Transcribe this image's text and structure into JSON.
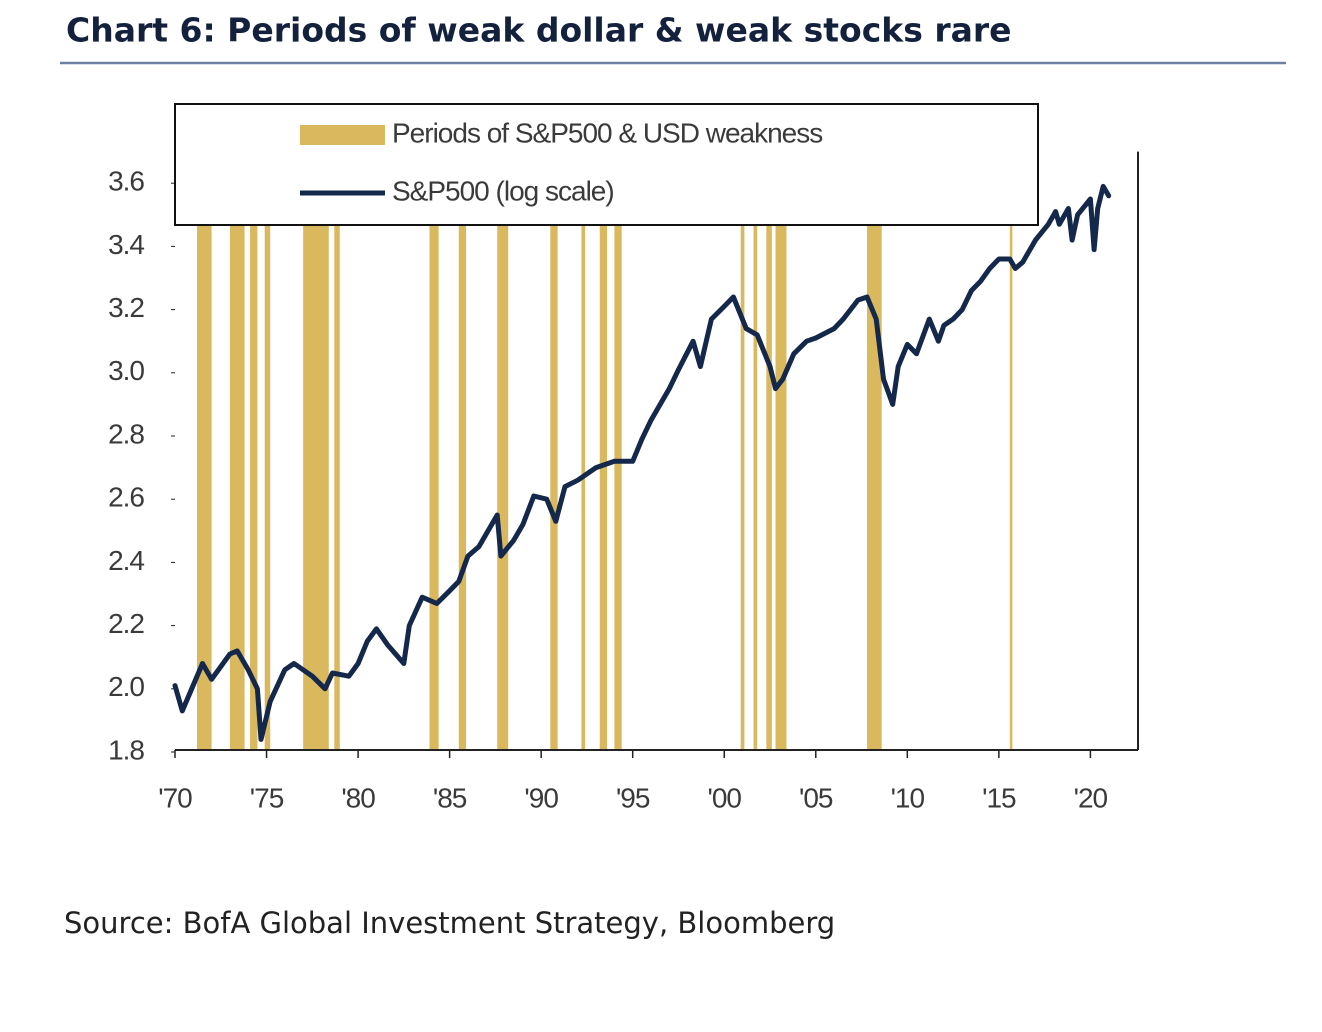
{
  "chart_data": {
    "type": "line",
    "title": "Chart 6: Periods of weak dollar & weak stocks rare",
    "source": "Source: BofA Global Investment Strategy, Bloomberg",
    "xlim": [
      1970,
      2022.6
    ],
    "ylim": [
      1.8,
      3.7
    ],
    "xticks": [
      {
        "value": 1970,
        "label": "'70"
      },
      {
        "value": 1975,
        "label": "'75"
      },
      {
        "value": 1980,
        "label": "'80"
      },
      {
        "value": 1985,
        "label": "'85"
      },
      {
        "value": 1990,
        "label": "'90"
      },
      {
        "value": 1995,
        "label": "'95"
      },
      {
        "value": 2000,
        "label": "'00"
      },
      {
        "value": 2005,
        "label": "'05"
      },
      {
        "value": 2010,
        "label": "'10"
      },
      {
        "value": 2015,
        "label": "'15"
      },
      {
        "value": 2020,
        "label": "'20"
      }
    ],
    "yticks": [
      {
        "value": 1.8,
        "label": "1.8"
      },
      {
        "value": 2.0,
        "label": "2.0"
      },
      {
        "value": 2.2,
        "label": "2.2"
      },
      {
        "value": 2.4,
        "label": "2.4"
      },
      {
        "value": 2.6,
        "label": "2.6"
      },
      {
        "value": 2.8,
        "label": "2.8"
      },
      {
        "value": 3.0,
        "label": "3.0"
      },
      {
        "value": 3.2,
        "label": "3.2"
      },
      {
        "value": 3.4,
        "label": "3.4"
      },
      {
        "value": 3.6,
        "label": "3.6"
      }
    ],
    "grid": false,
    "series": [
      {
        "name": "Periods of S&P500 & USD weakness",
        "type": "band",
        "color": "#d9b85e",
        "periods": [
          [
            1971.2,
            1972.0
          ],
          [
            1973.0,
            1973.8
          ],
          [
            1974.1,
            1974.5
          ],
          [
            1974.9,
            1975.2
          ],
          [
            1977.0,
            1978.4
          ],
          [
            1978.7,
            1979.0
          ],
          [
            1983.9,
            1984.4
          ],
          [
            1985.5,
            1985.9
          ],
          [
            1987.6,
            1988.2
          ],
          [
            1990.5,
            1990.9
          ],
          [
            1992.2,
            1992.4
          ],
          [
            1993.2,
            1993.6
          ],
          [
            1994.0,
            1994.4
          ],
          [
            2000.9,
            2001.1
          ],
          [
            2001.6,
            2001.8
          ],
          [
            2002.3,
            2002.6
          ],
          [
            2002.8,
            2003.4
          ],
          [
            2007.8,
            2008.6
          ],
          [
            2015.6,
            2015.7
          ]
        ]
      },
      {
        "name": "S&P500 (log scale)",
        "type": "line",
        "color": "#13284a",
        "x": [
          1970,
          1970.4,
          1971.5,
          1972,
          1973,
          1973.4,
          1974,
          1974.5,
          1974.7,
          1975.2,
          1976,
          1976.5,
          1977.5,
          1978.2,
          1978.6,
          1979.5,
          1980,
          1980.5,
          1981,
          1981.6,
          1982.5,
          1982.8,
          1983.5,
          1984.3,
          1985,
          1985.5,
          1986,
          1986.6,
          1987.6,
          1987.8,
          1988.5,
          1989,
          1989.6,
          1990.3,
          1990.8,
          1991.3,
          1992,
          1993,
          1994,
          1994.5,
          1995,
          1995.5,
          1996,
          1997,
          1997.5,
          1998.3,
          1998.7,
          1999.3,
          2000,
          2000.5,
          2001.2,
          2001.8,
          2002.5,
          2002.8,
          2003.2,
          2003.8,
          2004.5,
          2005,
          2006,
          2006.5,
          2007.3,
          2007.8,
          2008.3,
          2008.7,
          2009.2,
          2009.5,
          2010,
          2010.5,
          2011.2,
          2011.7,
          2012,
          2012.5,
          2013,
          2013.5,
          2014,
          2014.5,
          2015,
          2015.6,
          2015.9,
          2016.3,
          2017,
          2017.7,
          2018.1,
          2018.3,
          2018.8,
          2019.0,
          2019.3,
          2020,
          2020.2,
          2020.4,
          2020.7,
          2021
        ],
        "values": [
          2.01,
          1.93,
          2.08,
          2.03,
          2.11,
          2.12,
          2.06,
          2.0,
          1.84,
          1.96,
          2.06,
          2.08,
          2.04,
          2.0,
          2.05,
          2.04,
          2.08,
          2.15,
          2.19,
          2.14,
          2.08,
          2.2,
          2.29,
          2.27,
          2.31,
          2.34,
          2.42,
          2.45,
          2.55,
          2.42,
          2.47,
          2.52,
          2.61,
          2.6,
          2.53,
          2.64,
          2.66,
          2.7,
          2.72,
          2.72,
          2.72,
          2.79,
          2.85,
          2.95,
          3.01,
          3.1,
          3.02,
          3.17,
          3.21,
          3.24,
          3.14,
          3.12,
          3.02,
          2.95,
          2.98,
          3.06,
          3.1,
          3.11,
          3.14,
          3.17,
          3.23,
          3.24,
          3.17,
          2.98,
          2.9,
          3.02,
          3.09,
          3.06,
          3.17,
          3.1,
          3.15,
          3.17,
          3.2,
          3.26,
          3.29,
          3.33,
          3.36,
          3.36,
          3.33,
          3.35,
          3.42,
          3.47,
          3.51,
          3.47,
          3.52,
          3.42,
          3.5,
          3.55,
          3.39,
          3.52,
          3.59,
          3.56
        ]
      }
    ]
  }
}
